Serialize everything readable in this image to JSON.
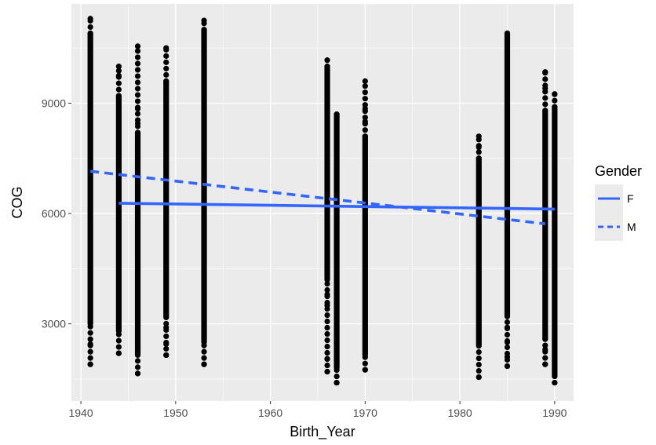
{
  "chart_data": {
    "type": "scatter",
    "title": "",
    "xlabel": "Birth_Year",
    "ylabel": "COG",
    "xlim": [
      1939,
      1992
    ],
    "ylim": [
      900,
      11700
    ],
    "x_ticks": [
      1940,
      1950,
      1960,
      1970,
      1980,
      1990
    ],
    "y_ticks": [
      3000,
      6000,
      9000
    ],
    "grid": true,
    "legend_position": "right",
    "point_color": "#000000",
    "line_color": "#3366ff",
    "panel_color": "#ebebeb",
    "point_columns": [
      {
        "x": 1941,
        "min": 1900,
        "max": 11300,
        "dense_min": 3000,
        "dense_max": 10900,
        "outliers": [
          1900,
          2450,
          11300
        ]
      },
      {
        "x": 1944,
        "min": 2200,
        "max": 10000,
        "dense_min": 2800,
        "dense_max": 9200,
        "outliers": [
          2200,
          9750,
          10000
        ]
      },
      {
        "x": 1946,
        "min": 1650,
        "max": 10550,
        "dense_min": 2150,
        "dense_max": 8200,
        "outliers": [
          1650,
          8450,
          8850,
          10550
        ]
      },
      {
        "x": 1949,
        "min": 2150,
        "max": 10500,
        "dense_min": 3200,
        "dense_max": 9600,
        "outliers": [
          2150,
          2450,
          2900,
          10500
        ]
      },
      {
        "x": 1953,
        "min": 1900,
        "max": 11250,
        "dense_min": 2500,
        "dense_max": 11000,
        "outliers": [
          1900,
          11250
        ]
      },
      {
        "x": 1966,
        "min": 1700,
        "max": 10300,
        "dense_min": 4200,
        "dense_max": 10000,
        "outliers": [
          1700,
          2050,
          3500,
          3800
        ]
      },
      {
        "x": 1967,
        "min": 1400,
        "max": 8800,
        "dense_min": 1800,
        "dense_max": 8700,
        "outliers": [
          1400
        ]
      },
      {
        "x": 1970,
        "min": 1750,
        "max": 9600,
        "dense_min": 2150,
        "dense_max": 8100,
        "outliers": [
          1750,
          8500,
          8850,
          9600
        ]
      },
      {
        "x": 1982,
        "min": 1550,
        "max": 8100,
        "dense_min": 2400,
        "dense_max": 7500,
        "outliers": [
          1550,
          7800,
          8100
        ]
      },
      {
        "x": 1985,
        "min": 1850,
        "max": 11000,
        "dense_min": 3200,
        "dense_max": 10900,
        "outliers": [
          1850,
          2100,
          2500,
          2900
        ]
      },
      {
        "x": 1989,
        "min": 1900,
        "max": 9850,
        "dense_min": 2600,
        "dense_max": 8800,
        "outliers": [
          1900,
          2300,
          9400,
          9850
        ]
      },
      {
        "x": 1990,
        "min": 1400,
        "max": 9250,
        "dense_min": 1600,
        "dense_max": 8900,
        "outliers": [
          1400,
          9250
        ]
      }
    ],
    "series": [
      {
        "name": "F",
        "linetype": "solid",
        "x": [
          1944,
          1990
        ],
        "y": [
          6280,
          6120
        ]
      },
      {
        "name": "M",
        "linetype": "dashed",
        "x": [
          1941,
          1989
        ],
        "y": [
          7150,
          5720
        ]
      }
    ],
    "legend": {
      "title": "Gender",
      "entries": [
        {
          "label": "F",
          "linetype": "solid"
        },
        {
          "label": "M",
          "linetype": "dashed"
        }
      ]
    }
  }
}
